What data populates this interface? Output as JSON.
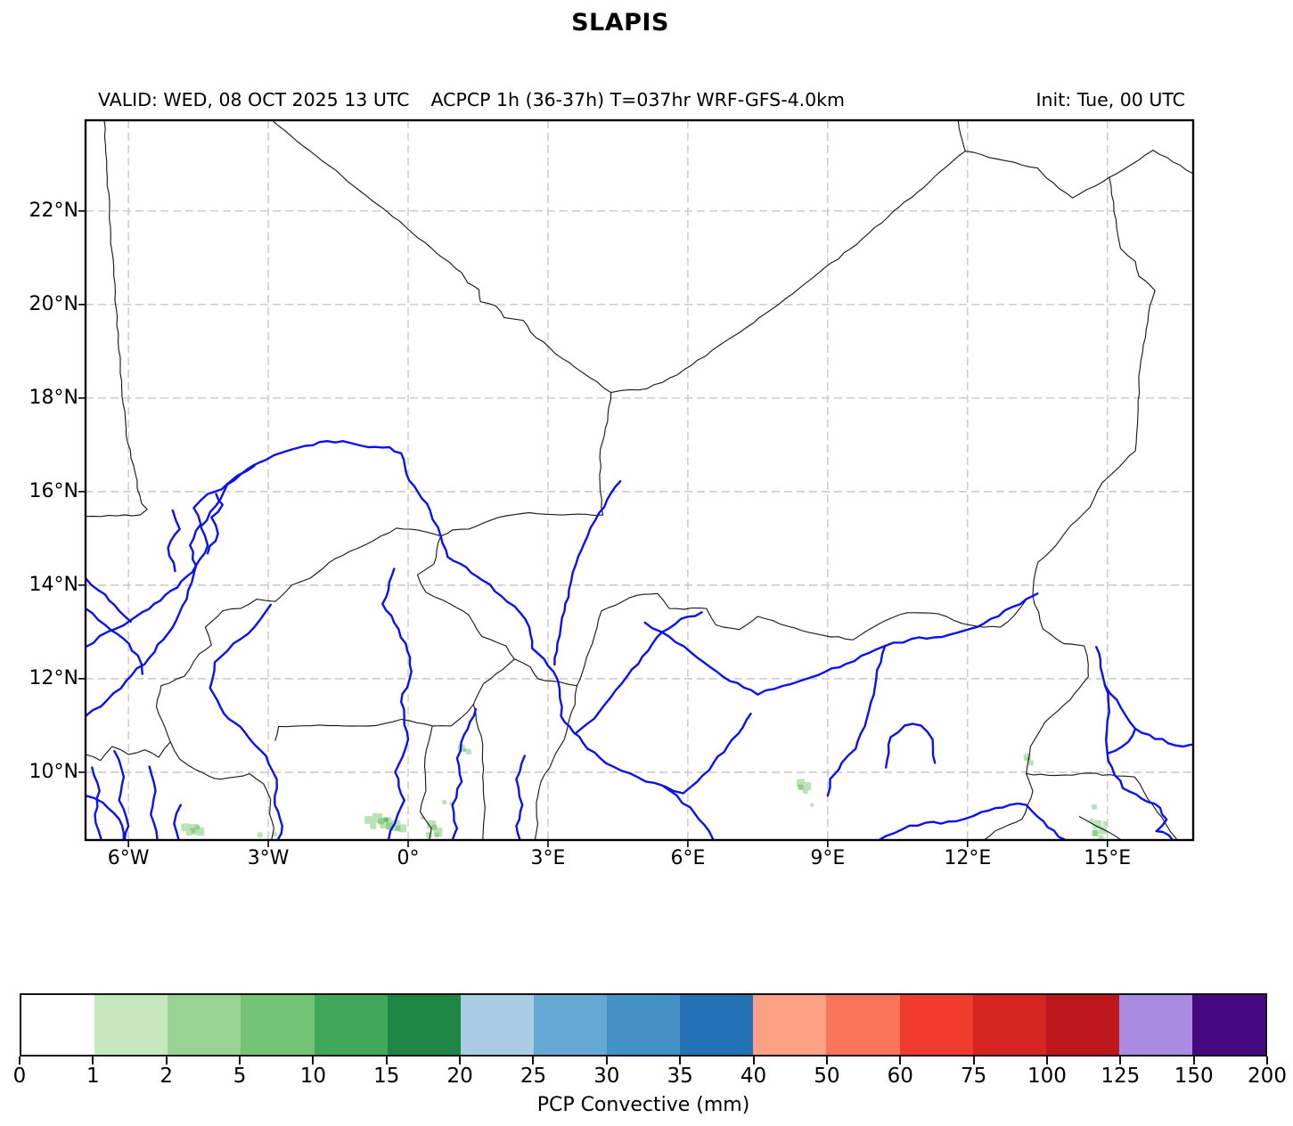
{
  "title": "SLAPIS",
  "header": {
    "valid": "VALID: WED, 08 OCT 2025 13 UTC",
    "product": "ACPCP 1h (36-37h) T=037hr WRF-GFS-4.0km",
    "init": "Init: Tue, 00 UTC"
  },
  "map": {
    "extent": {
      "lon_min": -6.92,
      "lon_max": 16.84,
      "lat_min": 8.55,
      "lat_max": 23.94
    },
    "x_ticks": [
      {
        "lon": -6,
        "label": "6°W"
      },
      {
        "lon": -3,
        "label": "3°W"
      },
      {
        "lon": 0,
        "label": "0°"
      },
      {
        "lon": 3,
        "label": "3°E"
      },
      {
        "lon": 6,
        "label": "6°E"
      },
      {
        "lon": 9,
        "label": "9°E"
      },
      {
        "lon": 12,
        "label": "12°E"
      },
      {
        "lon": 15,
        "label": "15°E"
      }
    ],
    "y_ticks": [
      {
        "lat": 22,
        "label": "22°N"
      },
      {
        "lat": 20,
        "label": "20°N"
      },
      {
        "lat": 18,
        "label": "18°N"
      },
      {
        "lat": 16,
        "label": "16°N"
      },
      {
        "lat": 14,
        "label": "14°N"
      },
      {
        "lat": 12,
        "label": "12°N"
      },
      {
        "lat": 10,
        "label": "10°N"
      }
    ],
    "grid_color": "#c8c8c8",
    "border_color": "#1b1b1b",
    "river_color": "#0b10ee",
    "frame_color": "#000000"
  },
  "colorbar": {
    "label": "PCP Convective (mm)",
    "boundaries": [
      "0",
      "1",
      "2",
      "5",
      "10",
      "15",
      "20",
      "25",
      "30",
      "35",
      "40",
      "50",
      "60",
      "75",
      "100",
      "125",
      "150",
      "200"
    ],
    "colors": [
      "#ffffff",
      "#c6e8bf",
      "#99d394",
      "#74c476",
      "#41a75b",
      "#1e8545",
      "#a9cee4",
      "#64a9d3",
      "#4292c6",
      "#2272b5",
      "#fca184",
      "#fb755a",
      "#ef3c2c",
      "#d62421",
      "#bd161b",
      "#a98ce1",
      "#46097f"
    ]
  },
  "precip_levels": {
    "1": "#b7e2b1",
    "2": "#8ccd86",
    "3": "#5fbb66"
  },
  "precip_cells": [
    [
      -4.78,
      8.82,
      1,
      9
    ],
    [
      -4.62,
      8.78,
      1,
      12
    ],
    [
      -4.46,
      8.73,
      1,
      9
    ],
    [
      -4.62,
      8.75,
      2,
      6
    ],
    [
      -4.52,
      8.82,
      2,
      5
    ],
    [
      -4.7,
      8.7,
      1,
      6
    ],
    [
      -3.18,
      8.66,
      1,
      6
    ],
    [
      -2.86,
      8.68,
      1,
      5
    ],
    [
      -0.85,
      8.98,
      1,
      9
    ],
    [
      -0.66,
      9.02,
      1,
      11
    ],
    [
      -0.48,
      8.92,
      1,
      13
    ],
    [
      -0.28,
      8.86,
      1,
      12
    ],
    [
      -0.12,
      8.8,
      1,
      9
    ],
    [
      -0.58,
      8.95,
      2,
      7
    ],
    [
      -0.4,
      8.85,
      2,
      8
    ],
    [
      -0.22,
      8.8,
      2,
      6
    ],
    [
      -0.47,
      8.98,
      3,
      5
    ],
    [
      -0.75,
      8.85,
      1,
      7
    ],
    [
      0.5,
      8.88,
      1,
      10
    ],
    [
      0.64,
      8.72,
      1,
      10
    ],
    [
      0.45,
      8.66,
      1,
      7
    ],
    [
      0.56,
      8.82,
      2,
      6
    ],
    [
      0.62,
      8.66,
      2,
      5
    ],
    [
      0.78,
      9.36,
      1,
      5
    ],
    [
      0.92,
      9.33,
      1,
      4
    ],
    [
      0.3,
      9.02,
      1,
      4
    ],
    [
      1.14,
      10.52,
      1,
      8
    ],
    [
      1.3,
      10.44,
      1,
      6
    ],
    [
      1.21,
      10.48,
      2,
      4
    ],
    [
      8.42,
      9.77,
      1,
      9
    ],
    [
      8.56,
      9.7,
      1,
      9
    ],
    [
      8.42,
      9.68,
      2,
      6
    ],
    [
      8.52,
      9.6,
      1,
      6
    ],
    [
      8.66,
      9.3,
      1,
      4
    ],
    [
      13.28,
      10.32,
      1,
      8
    ],
    [
      13.36,
      10.2,
      1,
      6
    ],
    [
      13.3,
      10.29,
      2,
      4
    ],
    [
      14.72,
      9.26,
      1,
      6
    ],
    [
      14.78,
      8.88,
      1,
      10
    ],
    [
      14.9,
      8.76,
      1,
      9
    ],
    [
      14.74,
      8.7,
      2,
      7
    ],
    [
      14.86,
      8.6,
      1,
      6
    ],
    [
      14.66,
      8.96,
      1,
      5
    ],
    [
      14.95,
      8.9,
      1,
      5
    ]
  ]
}
